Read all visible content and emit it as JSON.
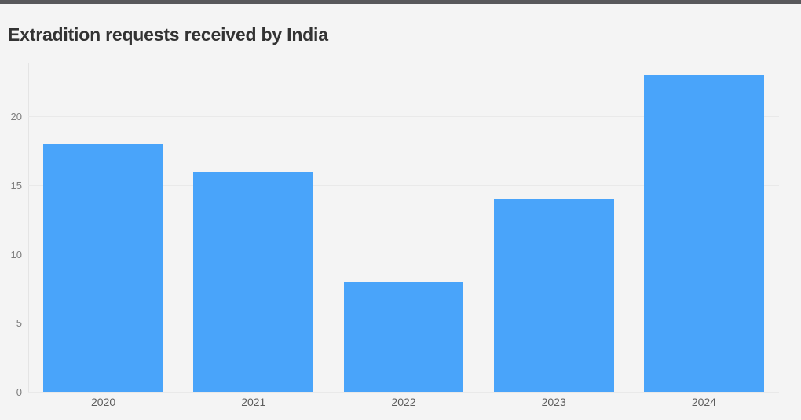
{
  "page": {
    "background_color": "#f4f4f4",
    "top_accent_bar_color": "#58585b"
  },
  "header": {
    "title": "Extradition requests received by India"
  },
  "chart_data": {
    "type": "bar",
    "title": "Extradition requests received by India",
    "categories": [
      "2020",
      "2021",
      "2022",
      "2023",
      "2024"
    ],
    "values": [
      18,
      16,
      8,
      14,
      23
    ],
    "xlabel": "",
    "ylabel": "",
    "ylim": [
      0,
      23.9
    ],
    "yticks": [
      0,
      5,
      10,
      15,
      20
    ],
    "grid": true,
    "legend": "none",
    "bar_color": "#49a4fa",
    "grid_color": "#e9e9e9",
    "y_tick_label_color": "#7c7c7c",
    "x_tick_label_color": "#5d5d5d",
    "title_color": "#333333"
  }
}
